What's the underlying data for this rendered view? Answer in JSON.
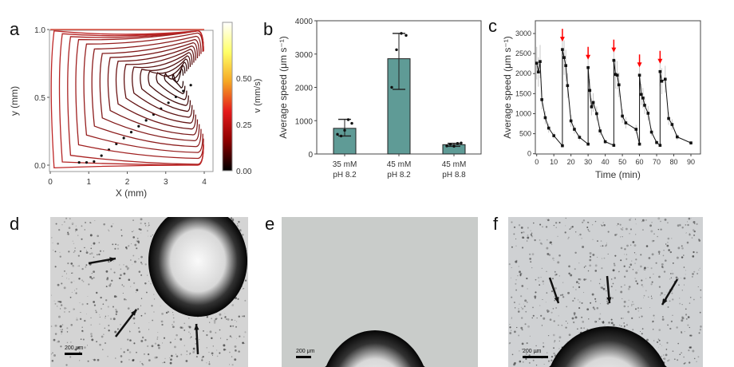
{
  "panels": {
    "a": "a",
    "b": "b",
    "c": "c",
    "d": "d",
    "e": "e",
    "f": "f"
  },
  "chart_data": [
    {
      "panel": "a",
      "type": "streamline",
      "xlabel": "X (mm)",
      "ylabel": "y (mm)",
      "xlim": [
        0,
        4.2
      ],
      "ylim": [
        -0.05,
        1.05
      ],
      "xticks": [
        "0",
        "1",
        "2",
        "3",
        "4"
      ],
      "yticks": [
        "0.0",
        "0.5",
        "1.0"
      ],
      "colorbar": {
        "label": "v (mm/s)",
        "ticks": [
          "0.00",
          "0.25",
          "0.50"
        ],
        "range": [
          0,
          0.8
        ],
        "colormap": [
          "#000000",
          "#8b0000",
          "#e41a1c",
          "#f5a623",
          "#ffff66",
          "#ffffff"
        ]
      }
    },
    {
      "panel": "b",
      "type": "bar",
      "categories": [
        [
          "35 mM",
          "pH 8.2"
        ],
        [
          "45 mM",
          "pH 8.2"
        ],
        [
          "45 mM",
          "pH 8.8"
        ]
      ],
      "values": [
        770,
        2860,
        280
      ],
      "error_low": [
        540,
        1940,
        230
      ],
      "error_high": [
        1040,
        3620,
        320
      ],
      "points": [
        [
          590,
          540,
          710,
          1030,
          920
        ],
        [
          2000,
          3130,
          3620,
          3560
        ],
        [
          240,
          290,
          230,
          320,
          330
        ]
      ],
      "ylabel": "Average speed (μm s⁻¹)",
      "ylim": [
        0,
        4000
      ],
      "yticks": [
        "0",
        "1000",
        "2000",
        "3000",
        "4000"
      ],
      "bar_color": "#5f9b96"
    },
    {
      "panel": "c",
      "type": "line",
      "xlabel": "Time (min)",
      "ylabel": "Average speed (μm s⁻¹)",
      "xlim": [
        -1,
        92
      ],
      "ylim": [
        0,
        3300
      ],
      "xticks": [
        "0",
        "10",
        "20",
        "30",
        "40",
        "50",
        "60",
        "70",
        "80",
        "90"
      ],
      "yticks": [
        "0",
        "500",
        "1000",
        "1500",
        "2000",
        "2500",
        "3000"
      ],
      "arrows_at": [
        15,
        30,
        45,
        60,
        72
      ],
      "arrow_color": "#ff0000",
      "segments": [
        [
          [
            0,
            2260
          ],
          [
            1,
            2040
          ],
          [
            2,
            2300
          ],
          [
            3,
            1350
          ],
          [
            5,
            900
          ],
          [
            7,
            640
          ],
          [
            10,
            450
          ],
          [
            15,
            200
          ]
        ],
        [
          [
            15,
            2600
          ],
          [
            16,
            2400
          ],
          [
            17,
            2200
          ],
          [
            18,
            1700
          ],
          [
            20,
            820
          ],
          [
            22,
            610
          ],
          [
            25,
            410
          ],
          [
            30,
            240
          ]
        ],
        [
          [
            30,
            2150
          ],
          [
            31,
            1580
          ],
          [
            32,
            1170
          ],
          [
            33,
            1280
          ],
          [
            35,
            1000
          ],
          [
            37,
            570
          ],
          [
            40,
            300
          ],
          [
            45,
            210
          ]
        ],
        [
          [
            45,
            2330
          ],
          [
            46,
            1980
          ],
          [
            47,
            1960
          ],
          [
            48,
            1720
          ],
          [
            50,
            940
          ],
          [
            52,
            770
          ],
          [
            58,
            610
          ],
          [
            60,
            240
          ]
        ],
        [
          [
            60,
            1960
          ],
          [
            61,
            1480
          ],
          [
            62,
            1390
          ],
          [
            63,
            1210
          ],
          [
            65,
            1010
          ],
          [
            67,
            540
          ],
          [
            70,
            280
          ],
          [
            72,
            210
          ]
        ],
        [
          [
            72,
            2050
          ],
          [
            73,
            1810
          ],
          [
            75,
            1860
          ],
          [
            77,
            880
          ],
          [
            79,
            730
          ],
          [
            82,
            420
          ],
          [
            90,
            270
          ]
        ]
      ]
    }
  ],
  "micrographs": {
    "d": {
      "scale_bar": "200 μm"
    },
    "e": {
      "scale_bar": "200 μm"
    },
    "f": {
      "scale_bar": "200 μm"
    }
  }
}
